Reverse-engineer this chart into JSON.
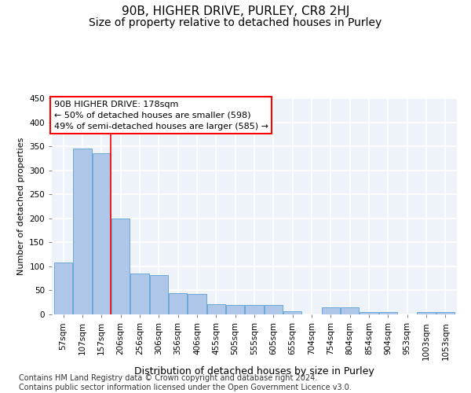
{
  "title": "90B, HIGHER DRIVE, PURLEY, CR8 2HJ",
  "subtitle": "Size of property relative to detached houses in Purley",
  "xlabel": "Distribution of detached houses by size in Purley",
  "ylabel": "Number of detached properties",
  "footnote": "Contains HM Land Registry data © Crown copyright and database right 2024.\nContains public sector information licensed under the Open Government Licence v3.0.",
  "bar_labels": [
    "57sqm",
    "107sqm",
    "157sqm",
    "206sqm",
    "256sqm",
    "306sqm",
    "356sqm",
    "406sqm",
    "455sqm",
    "505sqm",
    "555sqm",
    "605sqm",
    "655sqm",
    "704sqm",
    "754sqm",
    "804sqm",
    "854sqm",
    "904sqm",
    "953sqm",
    "1003sqm",
    "1053sqm"
  ],
  "bar_values": [
    108,
    345,
    335,
    200,
    85,
    82,
    45,
    42,
    22,
    20,
    20,
    20,
    7,
    0,
    15,
    15,
    5,
    5,
    0,
    5,
    5
  ],
  "bar_color": "#aec6e8",
  "bar_edge_color": "#5a9fd4",
  "red_line_x": 2.5,
  "annotation_box_text": "90B HIGHER DRIVE: 178sqm\n← 50% of detached houses are smaller (598)\n49% of semi-detached houses are larger (585) →",
  "ylim": [
    0,
    450
  ],
  "yticks": [
    0,
    50,
    100,
    150,
    200,
    250,
    300,
    350,
    400,
    450
  ],
  "background_color": "#eef2f9",
  "grid_color": "#ffffff",
  "title_fontsize": 11,
  "subtitle_fontsize": 10,
  "xlabel_fontsize": 9,
  "ylabel_fontsize": 8,
  "tick_fontsize": 7.5,
  "footnote_fontsize": 7
}
